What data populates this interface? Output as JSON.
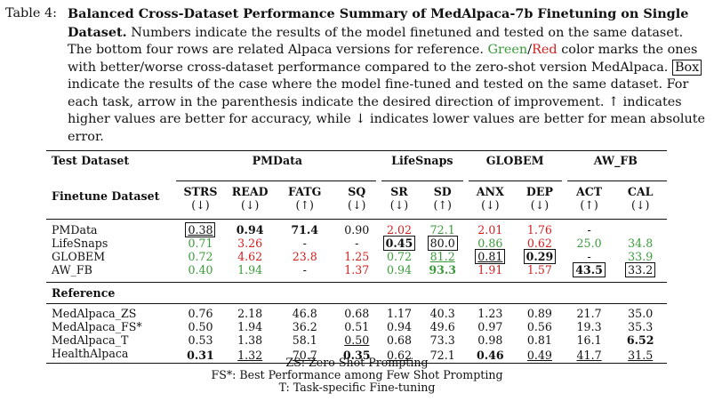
{
  "caption": {
    "label": "Table 4:",
    "title": "Balanced Cross-Dataset Performance Summary of MedAlpaca-7b Finetuning on Single Dataset.",
    "text1": " Numbers indicate the results of the model finetuned and tested on the same dataset. The bottom four rows are related Alpaca versions for reference. ",
    "green_word": "Green",
    "slash": "/",
    "red_word": "Red",
    "text2": " color marks the ones with better/worse cross-dataset performance compared to the zero-shot version MedAlpaca. ",
    "box_word": "Box",
    "text3": " indicate the results of the case where the model fine-tuned and tested on the same dataset. For each task, arrow in the parenthesis indicate the desired direction of improvement. ↑ indicates higher values are better for accuracy, while ↓ indicates lower values are better for mean absolute error."
  },
  "table": {
    "test_dataset_label": "Test Dataset",
    "finetune_dataset_label": "Finetune Dataset",
    "groups": [
      "PMData",
      "LifeSnaps",
      "GLOBEM",
      "AW_FB"
    ],
    "columns": [
      "STRS",
      "READ",
      "FATG",
      "SQ",
      "SR",
      "SD",
      "ANX",
      "DEP",
      "ACT",
      "CAL"
    ],
    "arrows": [
      "(↓)",
      "(↓)",
      "(↑)",
      "(↓)",
      "(↓)",
      "(↑)",
      "(↓)",
      "(↓)",
      "(↑)",
      "(↓)"
    ],
    "finetune_rows": [
      {
        "name": "PMData",
        "cells": [
          "0.38",
          "0.94",
          "71.4",
          "0.90",
          "2.02",
          "72.1",
          "2.01",
          "1.76",
          "-",
          ""
        ]
      },
      {
        "name": "LifeSnaps",
        "cells": [
          "0.71",
          "3.26",
          "-",
          "-",
          "0.45",
          "80.0",
          "0.86",
          "0.62",
          "25.0",
          "34.8"
        ]
      },
      {
        "name": "GLOBEM",
        "cells": [
          "0.72",
          "4.62",
          "23.8",
          "1.25",
          "0.72",
          "81.2",
          "0.81",
          "0.29",
          "-",
          "33.9"
        ]
      },
      {
        "name": "AW_FB",
        "cells": [
          "0.40",
          "1.94",
          "-",
          "1.37",
          "0.94",
          "93.3",
          "1.91",
          "1.57",
          "43.5",
          "33.2"
        ]
      }
    ],
    "reference_label": "Reference",
    "reference_rows": [
      {
        "name": "MedAlpaca_ZS",
        "cells": [
          "0.76",
          "2.18",
          "46.8",
          "0.68",
          "1.17",
          "40.3",
          "1.23",
          "0.89",
          "21.7",
          "35.0"
        ]
      },
      {
        "name": "MedAlpaca_FS*",
        "cells": [
          "0.50",
          "1.94",
          "36.2",
          "0.51",
          "0.94",
          "49.6",
          "0.97",
          "0.56",
          "19.3",
          "35.3"
        ]
      },
      {
        "name": "MedAlpaca_T",
        "cells": [
          "0.53",
          "1.38",
          "58.1",
          "0.50",
          "0.68",
          "73.3",
          "0.98",
          "0.81",
          "16.1",
          "6.52"
        ]
      },
      {
        "name": "HealthAlpaca",
        "cells": [
          "0.31",
          "1.32",
          "70.7",
          "0.35",
          "0.62",
          "72.1",
          "0.46",
          "0.49",
          "41.7",
          "31.5"
        ]
      }
    ],
    "colors": {
      "green": "#3a9a3a",
      "red": "#d02020"
    }
  },
  "notes": [
    "ZS: Zero Shot Prompting",
    "FS*: Best Performance among Few Shot Prompting",
    "T: Task-specific Fine-tuning"
  ]
}
